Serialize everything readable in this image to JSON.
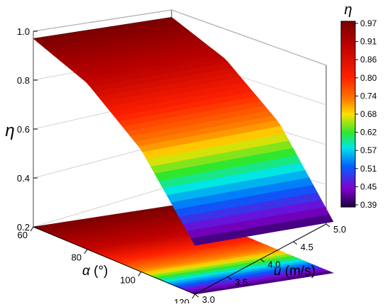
{
  "chart_data": {
    "type": "surface3d",
    "z_axis": {
      "label": "η",
      "range": [
        0.2,
        1.0
      ],
      "ticks": [
        "0.2",
        "0.4",
        "0.6",
        "0.8",
        "1.0"
      ]
    },
    "x_axis": {
      "label": "α (°)",
      "label_symbol": "α",
      "label_unit": " (°)",
      "range": [
        60,
        120
      ],
      "ticks": [
        "60",
        "80",
        "100",
        "120"
      ]
    },
    "y_axis": {
      "label": "u (m/s)",
      "label_symbol": "u",
      "label_unit": " (m/s)",
      "range": [
        3.0,
        5.0
      ],
      "ticks": [
        "3.0",
        "3.5",
        "4.0",
        "4.5",
        "5.0"
      ]
    },
    "colorbar": {
      "title": "η",
      "range": [
        0.39,
        0.97
      ],
      "ticks": [
        "0.97",
        "0.91",
        "0.86",
        "0.80",
        "0.74",
        "0.68",
        "0.62",
        "0.57",
        "0.51",
        "0.45",
        "0.39"
      ]
    },
    "surface": {
      "description": "η decreases with increasing α; nearly independent of u",
      "alpha": [
        60,
        80,
        100,
        120
      ],
      "eta_at_u_3.0": [
        0.97,
        0.88,
        0.7,
        0.4
      ],
      "eta_at_u_5.0": [
        0.97,
        0.89,
        0.72,
        0.41
      ]
    },
    "floor_projection": true,
    "grid": true
  }
}
